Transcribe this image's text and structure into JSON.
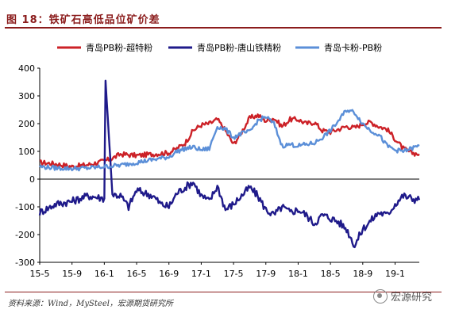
{
  "header": {
    "title": "图 18：铁矿石高低品位矿价差"
  },
  "source": "资料来源：Wind，MySteel，宏源期货研究所",
  "watermark": "宏源研究",
  "colors": {
    "brand": "#8b1c1c",
    "series_red": "#cc2127",
    "series_navy": "#1f1a8a",
    "series_light": "#5b8fd8"
  },
  "chart_data": {
    "type": "line",
    "title": "",
    "xlabel": "",
    "ylabel": "",
    "ylim": [
      -300,
      400
    ],
    "yticks": [
      400,
      300,
      200,
      100,
      0,
      -100,
      -200,
      -300
    ],
    "xticks": [
      "15-5",
      "15-9",
      "16-1",
      "16-5",
      "16-9",
      "17-1",
      "17-5",
      "17-9",
      "18-1",
      "18-5",
      "18-9",
      "19-1"
    ],
    "x_start": "15-5",
    "x_end": "19-4",
    "legend_position": "top",
    "grid": false,
    "series": [
      {
        "name": "青岛PB粉-超特粉",
        "color": "#cc2127",
        "points": [
          [
            "15-5",
            60
          ],
          [
            "15-7",
            55
          ],
          [
            "15-9",
            45
          ],
          [
            "15-11",
            52
          ],
          [
            "16-1",
            65
          ],
          [
            "16-2",
            75
          ],
          [
            "16-3",
            90
          ],
          [
            "16-5",
            85
          ],
          [
            "16-7",
            90
          ],
          [
            "16-9",
            95
          ],
          [
            "16-10",
            110
          ],
          [
            "16-11",
            130
          ],
          [
            "16-12",
            175
          ],
          [
            "17-1",
            195
          ],
          [
            "17-2",
            200
          ],
          [
            "17-3",
            215
          ],
          [
            "17-4",
            175
          ],
          [
            "17-5",
            125
          ],
          [
            "17-6",
            170
          ],
          [
            "17-7",
            220
          ],
          [
            "17-8",
            230
          ],
          [
            "17-9",
            210
          ],
          [
            "17-10",
            220
          ],
          [
            "17-11",
            190
          ],
          [
            "17-12",
            215
          ],
          [
            "18-1",
            215
          ],
          [
            "18-2",
            200
          ],
          [
            "18-3",
            205
          ],
          [
            "18-4",
            175
          ],
          [
            "18-5",
            170
          ],
          [
            "18-6",
            180
          ],
          [
            "18-7",
            190
          ],
          [
            "18-8",
            185
          ],
          [
            "18-9",
            200
          ],
          [
            "18-10",
            205
          ],
          [
            "18-11",
            190
          ],
          [
            "18-12",
            180
          ],
          [
            "19-1",
            145
          ],
          [
            "19-2",
            110
          ],
          [
            "19-3",
            95
          ],
          [
            "19-4",
            90
          ]
        ]
      },
      {
        "name": "青岛PB粉-唐山铁精粉",
        "color": "#1f1a8a",
        "points": [
          [
            "15-5",
            -120
          ],
          [
            "15-7",
            -90
          ],
          [
            "15-9",
            -80
          ],
          [
            "15-11",
            -60
          ],
          [
            "16-1",
            -70
          ],
          [
            "16-1b",
            355
          ],
          [
            "16-2",
            -55
          ],
          [
            "16-3",
            -60
          ],
          [
            "16-4",
            -100
          ],
          [
            "16-5",
            -40
          ],
          [
            "16-7",
            -60
          ],
          [
            "16-8",
            -90
          ],
          [
            "16-9",
            -100
          ],
          [
            "16-10",
            -50
          ],
          [
            "16-11",
            -30
          ],
          [
            "16-12",
            -10
          ],
          [
            "17-1",
            -60
          ],
          [
            "17-2",
            -80
          ],
          [
            "17-3",
            -25
          ],
          [
            "17-4",
            -110
          ],
          [
            "17-5",
            -90
          ],
          [
            "17-6",
            -60
          ],
          [
            "17-7",
            -30
          ],
          [
            "17-8",
            -60
          ],
          [
            "17-9",
            -110
          ],
          [
            "17-10",
            -130
          ],
          [
            "17-11",
            -100
          ],
          [
            "17-12",
            -120
          ],
          [
            "18-1",
            -110
          ],
          [
            "18-2",
            -130
          ],
          [
            "18-3",
            -160
          ],
          [
            "18-4",
            -130
          ],
          [
            "18-5",
            -140
          ],
          [
            "18-6",
            -155
          ],
          [
            "18-7",
            -180
          ],
          [
            "18-8",
            -240
          ],
          [
            "18-9",
            -180
          ],
          [
            "18-10",
            -150
          ],
          [
            "18-11",
            -120
          ],
          [
            "18-12",
            -130
          ],
          [
            "19-1",
            -90
          ],
          [
            "19-2",
            -60
          ],
          [
            "19-3",
            -70
          ],
          [
            "19-4",
            -75
          ]
        ]
      },
      {
        "name": "青岛卡粉-PB粉",
        "color": "#5b8fd8",
        "points": [
          [
            "15-5",
            45
          ],
          [
            "15-7",
            40
          ],
          [
            "15-9",
            38
          ],
          [
            "15-11",
            40
          ],
          [
            "16-1",
            45
          ],
          [
            "16-3",
            50
          ],
          [
            "16-5",
            60
          ],
          [
            "16-7",
            70
          ],
          [
            "16-9",
            80
          ],
          [
            "16-10",
            100
          ],
          [
            "16-11",
            110
          ],
          [
            "16-12",
            115
          ],
          [
            "17-1",
            105
          ],
          [
            "17-2",
            110
          ],
          [
            "17-3",
            190
          ],
          [
            "17-4",
            180
          ],
          [
            "17-5",
            150
          ],
          [
            "17-6",
            165
          ],
          [
            "17-7",
            170
          ],
          [
            "17-8",
            210
          ],
          [
            "17-9",
            225
          ],
          [
            "17-10",
            200
          ],
          [
            "17-11",
            120
          ],
          [
            "17-12",
            125
          ],
          [
            "18-1",
            120
          ],
          [
            "18-2",
            125
          ],
          [
            "18-3",
            130
          ],
          [
            "18-4",
            150
          ],
          [
            "18-5",
            175
          ],
          [
            "18-6",
            210
          ],
          [
            "18-7",
            250
          ],
          [
            "18-8",
            240
          ],
          [
            "18-9",
            200
          ],
          [
            "18-10",
            175
          ],
          [
            "18-11",
            160
          ],
          [
            "18-12",
            120
          ],
          [
            "19-1",
            105
          ],
          [
            "19-2",
            100
          ],
          [
            "19-3",
            110
          ],
          [
            "19-4",
            120
          ]
        ]
      }
    ]
  }
}
